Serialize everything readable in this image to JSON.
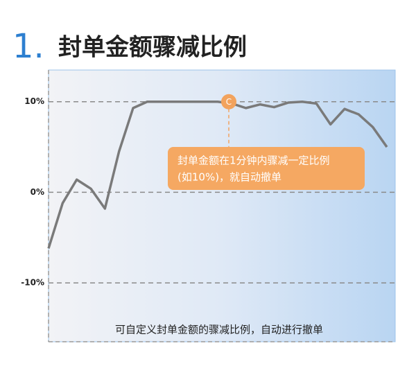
{
  "chart_data": {
    "type": "line",
    "title_number": "1.",
    "title": "封单金额骤减比例",
    "categories": [
      null,
      null,
      null,
      null,
      null,
      null,
      null,
      null,
      null,
      null,
      null,
      null,
      null,
      null,
      null,
      null,
      null,
      null,
      null,
      null,
      null,
      null,
      null,
      null,
      null
    ],
    "values": [
      -6.2,
      -1.2,
      1.4,
      0.4,
      -1.8,
      4.5,
      9.3,
      10,
      10,
      10,
      10,
      10,
      10,
      9.8,
      9.3,
      9.7,
      9.4,
      9.9,
      10,
      9.8,
      7.5,
      9.2,
      8.6,
      7.2,
      5.0
    ],
    "color": "#7a7a7a",
    "ylim": [
      -16.5,
      13.5
    ],
    "yticks": [
      {
        "value": 10,
        "label": "10%"
      },
      {
        "value": 0,
        "label": "0%"
      },
      {
        "value": -10,
        "label": "-10%"
      }
    ],
    "grid": true,
    "marker_label": "C",
    "callout": [
      "封单金额在1分钟内骤减一定比例",
      "(如10%)，就自动撤单"
    ],
    "caption": "可自定义封单金额的骤减比例，自动进行撤单"
  }
}
